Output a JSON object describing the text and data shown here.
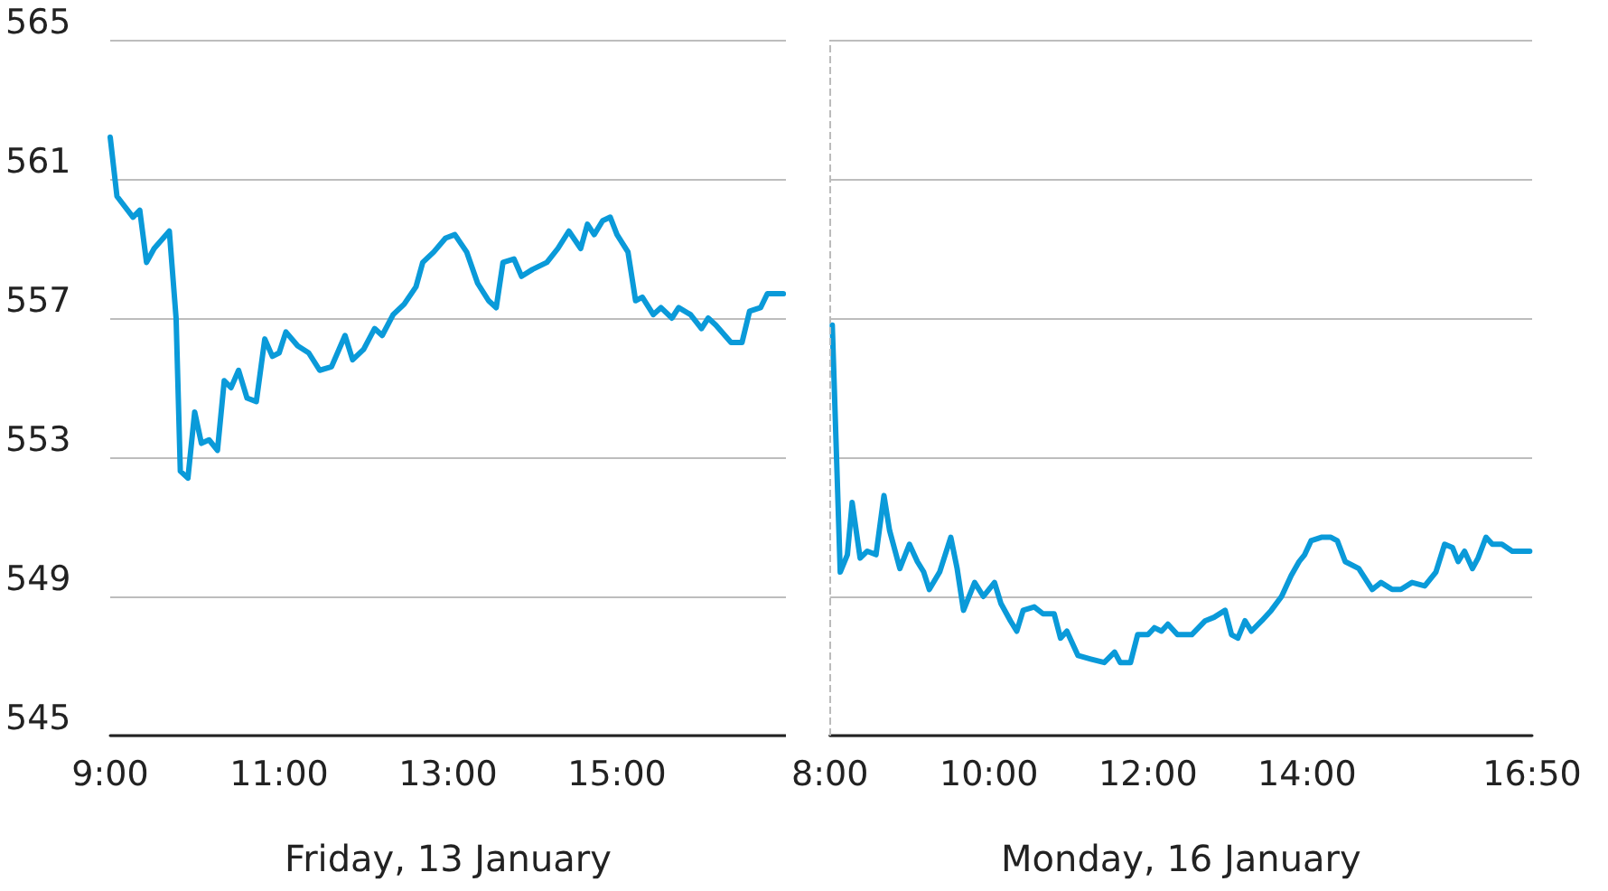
{
  "chart_data": [
    {
      "type": "line",
      "xlabel": "Friday, 13 January",
      "x": [
        9.0,
        9.08,
        9.27,
        9.35,
        9.43,
        9.52,
        9.7,
        9.78,
        9.83,
        9.92,
        10.0,
        10.08,
        10.17,
        10.27,
        10.35,
        10.43,
        10.52,
        10.62,
        10.73,
        10.83,
        10.92,
        11.0,
        11.08,
        11.22,
        11.35,
        11.48,
        11.62,
        11.78,
        11.87,
        12.0,
        12.13,
        12.22,
        12.35,
        12.48,
        12.62,
        12.7,
        12.83,
        12.97,
        13.08,
        13.22,
        13.35,
        13.48,
        13.57,
        13.65,
        13.78,
        13.87,
        14.0,
        14.17,
        14.3,
        14.43,
        14.57,
        14.65,
        14.73,
        14.83,
        14.92,
        15.0,
        15.13,
        15.22,
        15.3,
        15.43,
        15.52,
        15.65,
        15.73,
        15.87,
        16.0,
        16.08,
        16.17,
        16.35,
        16.48,
        16.57,
        16.7,
        16.78,
        16.97
      ],
      "series": [
        {
          "color": "#0a9ad9",
          "values": [
            562.2,
            560.5,
            559.9,
            560.1,
            558.6,
            559.0,
            559.5,
            557.0,
            552.6,
            552.4,
            554.3,
            553.4,
            553.5,
            553.2,
            555.2,
            555.0,
            555.5,
            554.7,
            554.6,
            556.4,
            555.9,
            556.0,
            556.6,
            556.2,
            556.0,
            555.5,
            555.6,
            556.5,
            555.8,
            556.1,
            556.7,
            556.5,
            557.1,
            557.4,
            557.9,
            558.6,
            558.9,
            559.3,
            559.4,
            558.9,
            558.0,
            557.5,
            557.3,
            558.6,
            558.7,
            558.2,
            558.4,
            558.6,
            559.0,
            559.5,
            559.0,
            559.7,
            559.4,
            559.8,
            559.9,
            559.4,
            558.9,
            557.5,
            557.6,
            557.1,
            557.3,
            557.0,
            557.3,
            557.1,
            556.7,
            557.0,
            556.8,
            556.3,
            556.3,
            557.2,
            557.3,
            557.7,
            557.7
          ]
        }
      ],
      "xlim": [
        9,
        17
      ],
      "xticks": [
        {
          "value": 9,
          "label": "9:00"
        },
        {
          "value": 11,
          "label": "11:00"
        },
        {
          "value": 13,
          "label": "13:00"
        },
        {
          "value": 15,
          "label": "15:00"
        }
      ],
      "ylim": [
        545,
        565
      ],
      "yticks": [
        545,
        549,
        553,
        557,
        561,
        565
      ],
      "grid": "y",
      "marker": "none",
      "line_style": "solid"
    },
    {
      "type": "line",
      "xlabel": "Monday, 16 January",
      "x": [
        8.03,
        8.13,
        8.22,
        8.28,
        8.38,
        8.47,
        8.58,
        8.68,
        8.75,
        8.88,
        9.0,
        9.1,
        9.18,
        9.25,
        9.38,
        9.52,
        9.6,
        9.68,
        9.82,
        9.93,
        10.07,
        10.15,
        10.27,
        10.35,
        10.43,
        10.57,
        10.68,
        10.82,
        10.9,
        10.98,
        11.12,
        11.28,
        11.45,
        11.58,
        11.65,
        11.78,
        11.87,
        12.0,
        12.08,
        12.17,
        12.25,
        12.37,
        12.55,
        12.72,
        12.83,
        12.97,
        13.05,
        13.13,
        13.22,
        13.3,
        13.43,
        13.55,
        13.68,
        13.8,
        13.9,
        13.97,
        14.05,
        14.18,
        14.3,
        14.38,
        14.48,
        14.65,
        14.82,
        14.93,
        15.07,
        15.18,
        15.32,
        15.48,
        15.62,
        15.73,
        15.83,
        15.9,
        15.98,
        16.08,
        16.15,
        16.25,
        16.33,
        16.45,
        16.58,
        16.8
      ],
      "series": [
        {
          "color": "#0a9ad9",
          "values": [
            556.8,
            549.7,
            550.2,
            551.7,
            550.1,
            550.3,
            550.2,
            551.9,
            550.9,
            549.8,
            550.5,
            550.0,
            549.7,
            549.2,
            549.7,
            550.7,
            549.8,
            548.6,
            549.4,
            549.0,
            549.4,
            548.8,
            548.3,
            548.0,
            548.6,
            548.7,
            548.5,
            548.5,
            547.8,
            548.0,
            547.3,
            547.2,
            547.1,
            547.4,
            547.1,
            547.1,
            547.9,
            547.9,
            548.1,
            548.0,
            548.2,
            547.9,
            547.9,
            548.3,
            548.4,
            548.6,
            547.9,
            547.8,
            548.3,
            548.0,
            548.3,
            548.6,
            549.0,
            549.6,
            550.0,
            550.2,
            550.6,
            550.7,
            550.7,
            550.6,
            550.0,
            549.8,
            549.2,
            549.4,
            549.2,
            549.2,
            549.4,
            549.3,
            549.7,
            550.5,
            550.4,
            550.0,
            550.3,
            549.8,
            550.1,
            550.7,
            550.5,
            550.5,
            550.3,
            550.3
          ]
        }
      ],
      "xlim": [
        8,
        16.83
      ],
      "xticks": [
        {
          "value": 8,
          "label": "8:00"
        },
        {
          "value": 10,
          "label": "10:00"
        },
        {
          "value": 12,
          "label": "12:00"
        },
        {
          "value": 14,
          "label": "14:00"
        },
        {
          "value": 16.83,
          "label": "16:50"
        }
      ],
      "ylim": [
        545,
        565
      ],
      "yticks": [
        545,
        549,
        553,
        557,
        561,
        565
      ],
      "ref_lines": [
        {
          "axis": "x",
          "value": 8,
          "color": "#bbbbbb",
          "line_style": "dashed"
        }
      ],
      "tick_labels": "x",
      "grid": "y",
      "marker": "none",
      "line_style": "solid"
    }
  ]
}
